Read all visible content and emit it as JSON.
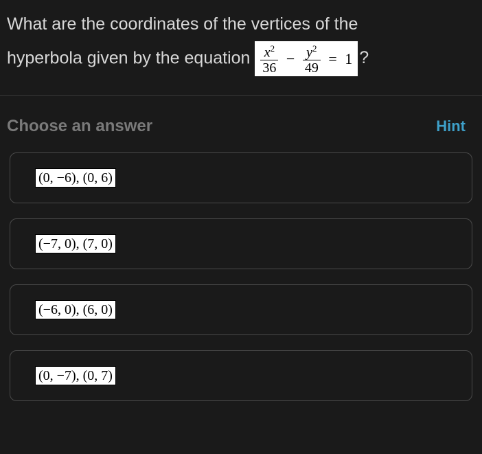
{
  "question": {
    "line1": "What are the coordinates of the vertices of the",
    "line2_pre": "hyperbola given by the equation ",
    "line2_post": "?",
    "equation": {
      "frac1_num_var": "x",
      "frac1_num_exp": "2",
      "frac1_den": "36",
      "op1": "−",
      "frac2_num_var": "y",
      "frac2_num_exp": "2",
      "frac2_den": "49",
      "op2": "=",
      "rhs": "1"
    }
  },
  "choose_label": "Choose an answer",
  "hint_label": "Hint",
  "answers": [
    {
      "tex": "(0, −6), (0, 6)"
    },
    {
      "tex": "(−7, 0), (7, 0)"
    },
    {
      "tex": "(−6, 0), (6, 0)"
    },
    {
      "tex": "(0, −7), (0, 7)"
    }
  ],
  "colors": {
    "bg": "#1a1a1a",
    "text": "#d8d8d8",
    "muted": "#7a7a7a",
    "accent": "#3ea0c9",
    "box_bg": "#ffffff",
    "box_text": "#000000",
    "border": "#4a4a4a"
  }
}
